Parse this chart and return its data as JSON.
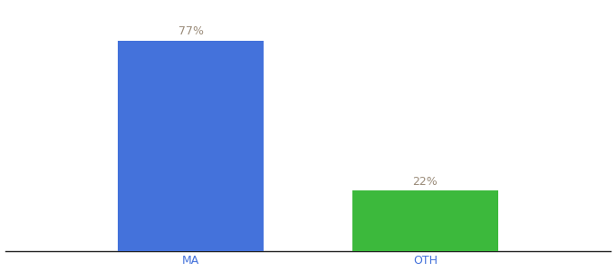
{
  "categories": [
    "MA",
    "OTH"
  ],
  "values": [
    77,
    22
  ],
  "bar_colors": [
    "#4472db",
    "#3cb93c"
  ],
  "label_texts": [
    "77%",
    "22%"
  ],
  "ylim": [
    0,
    90
  ],
  "background_color": "#ffffff",
  "label_color": "#9b8c7a",
  "tick_color": "#4472db",
  "bar_width": 0.18,
  "label_fontsize": 9,
  "tick_fontsize": 9,
  "x_positions": [
    0.33,
    0.62
  ]
}
